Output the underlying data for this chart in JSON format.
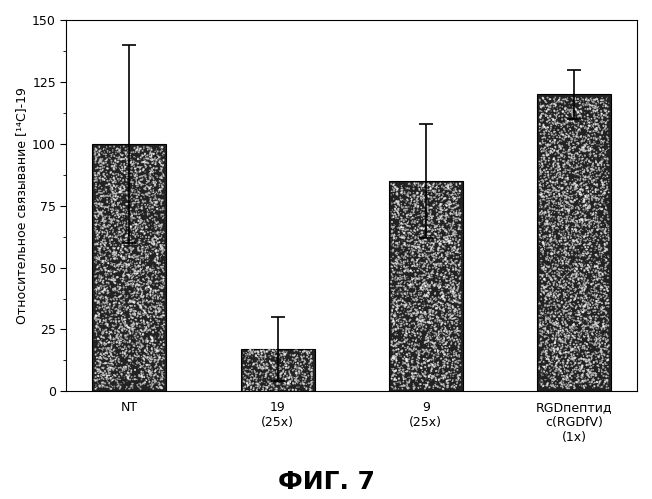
{
  "categories": [
    "NT",
    "19\n(25x)",
    "9\n(25x)",
    "RGDпептид\nc(RGDfV)\n(1x)"
  ],
  "values": [
    100,
    17,
    85,
    120
  ],
  "errors_upper": [
    40,
    13,
    23,
    10
  ],
  "errors_lower": [
    40,
    13,
    23,
    10
  ],
  "bar_color": "#222222",
  "ylim": [
    0,
    150
  ],
  "yticks": [
    0,
    25,
    50,
    75,
    100,
    125,
    150
  ],
  "ylabel": "Относительное связывание [¹⁴C]-19",
  "figure_label": "ФИГ. 7",
  "background_color": "#ffffff",
  "bar_width": 0.5,
  "ylabel_fontsize": 9,
  "tick_fontsize": 9,
  "fig_label_fontsize": 18,
  "noise_density": 8000
}
